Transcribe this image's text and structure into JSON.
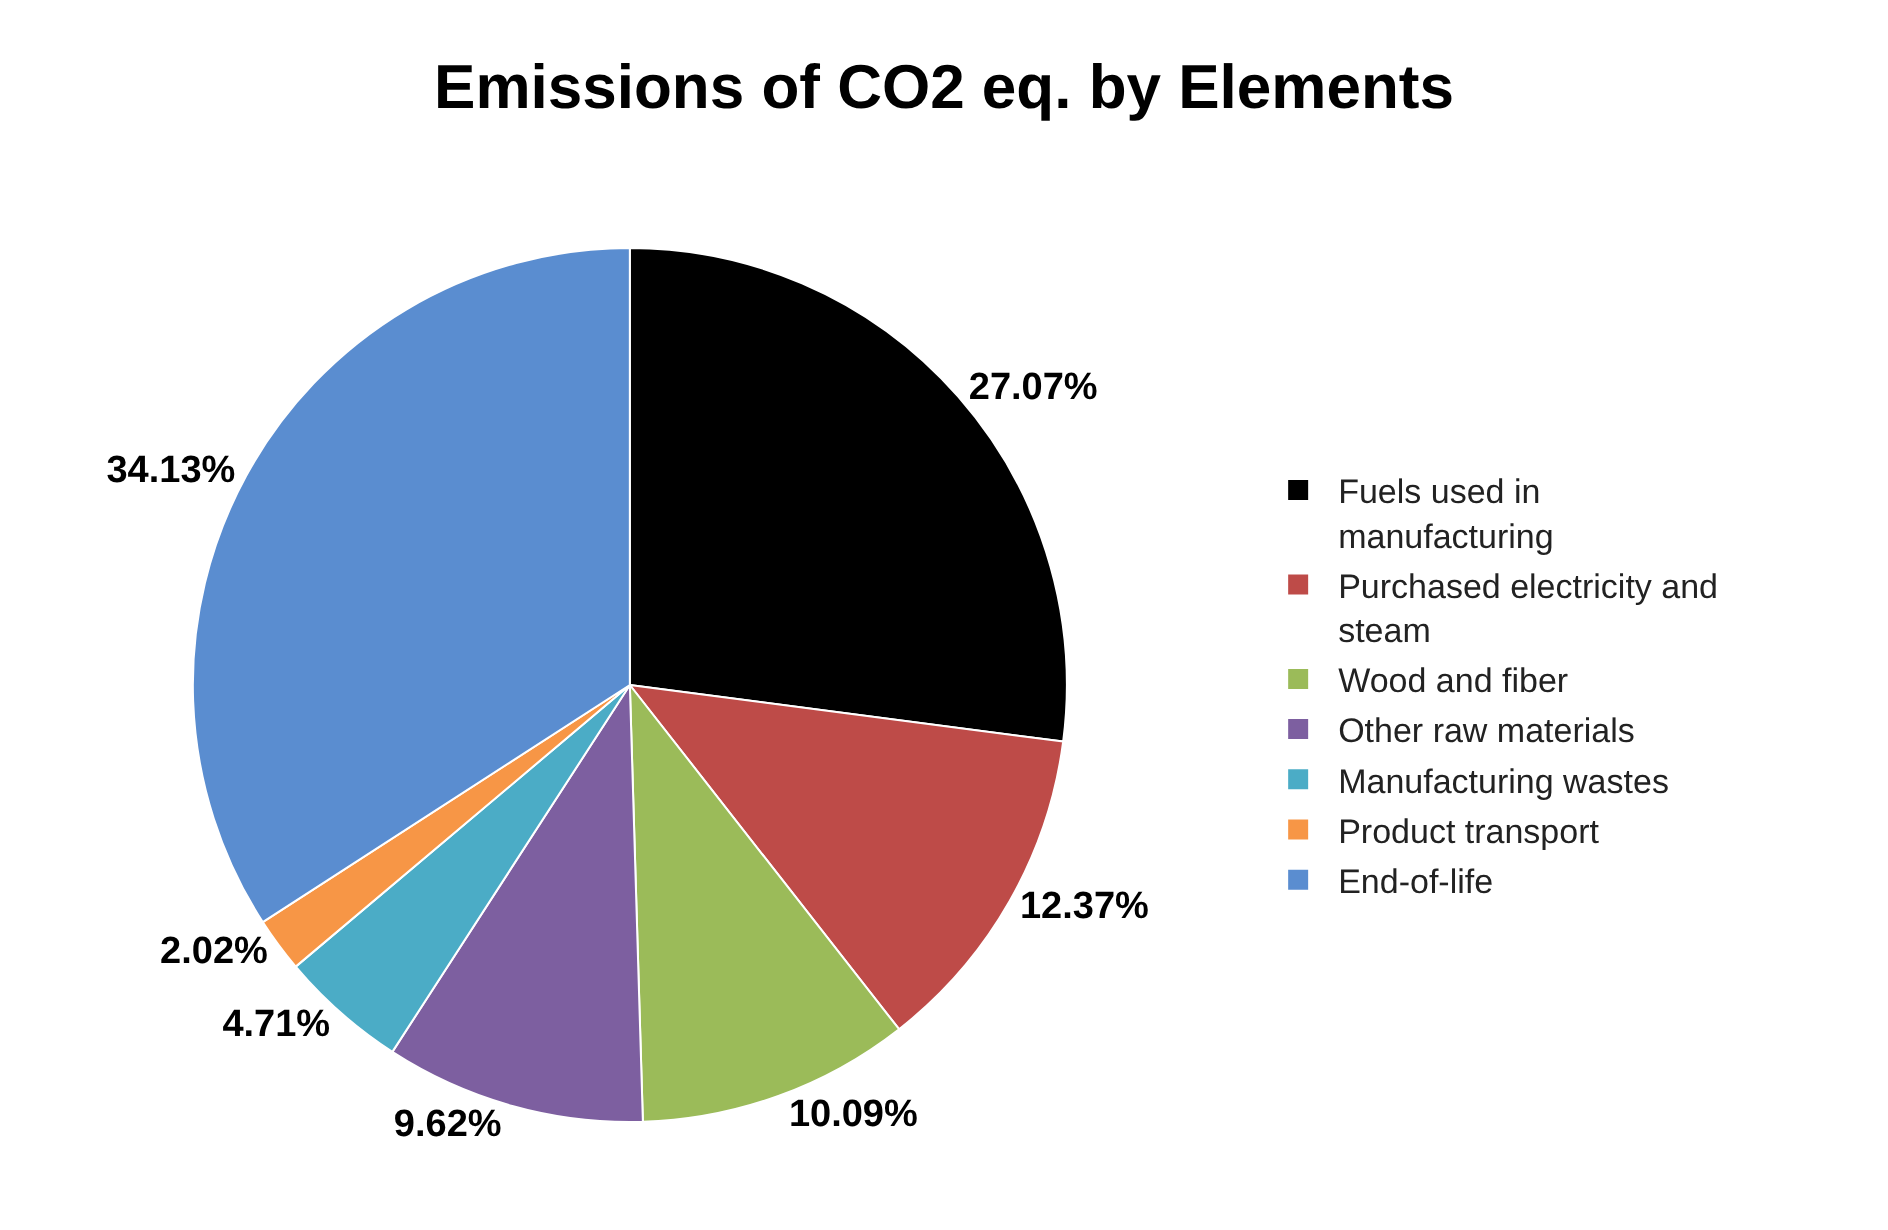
{
  "chart_data": {
    "type": "pie",
    "title": "Emissions of CO2 eq. by Elements",
    "categories": [
      "Fuels used in manufacturing",
      "Purchased electricity and steam",
      "Wood and fiber",
      "Other raw materials",
      "Manufacturing wastes",
      "Product transport",
      "End-of-life"
    ],
    "values": [
      27.07,
      12.37,
      10.09,
      9.62,
      4.71,
      2.02,
      34.13
    ],
    "colors": [
      "#000000",
      "#be4b48",
      "#9bbb59",
      "#7d5fa0",
      "#4bacc6",
      "#f79646",
      "#5a8dd0"
    ],
    "value_labels": [
      "27.07%",
      "12.37%",
      "10.09%",
      "9.62%",
      "4.71%",
      "2.02%",
      "34.13%"
    ],
    "legend": "right"
  }
}
